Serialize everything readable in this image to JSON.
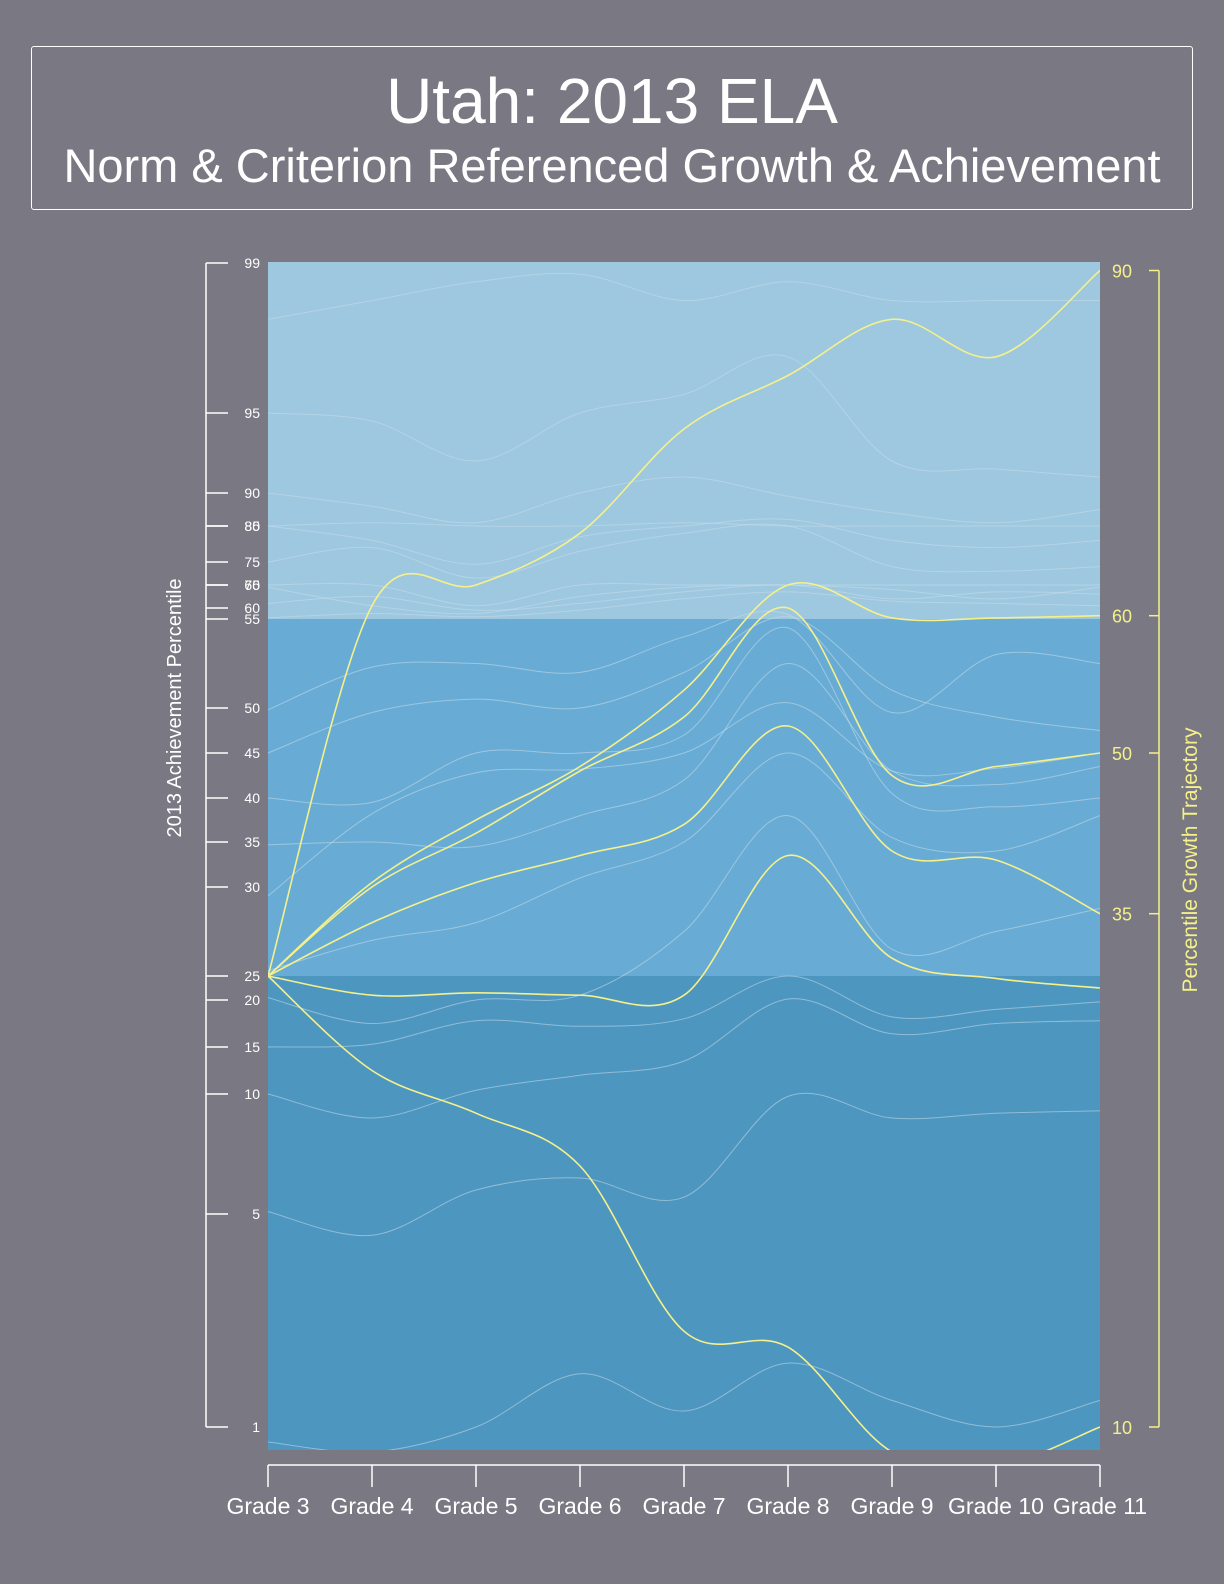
{
  "title": "Utah: 2013 ELA",
  "subtitle": "Norm & Criterion Referenced Growth & Achievement",
  "colors": {
    "background": "#797883",
    "band_top": "#9dc8e0",
    "band_middle": "#68acd5",
    "band_bottom": "#4d96c0",
    "trajectory": "#f5f08a",
    "gridline": "#c9dcea",
    "axis": "#ffffff"
  },
  "chart_data": {
    "type": "line",
    "x": [
      "Grade 3",
      "Grade 4",
      "Grade 5",
      "Grade 6",
      "Grade 7",
      "Grade 8",
      "Grade 9",
      "Grade 10",
      "Grade 11"
    ],
    "y_left": {
      "label": "2013 Achievement Percentile",
      "ticks": [
        "1",
        "5",
        "10",
        "15",
        "20",
        "25",
        "30",
        "35",
        "40",
        "45",
        "50",
        "55",
        "60",
        "65",
        "70",
        "75",
        "80",
        "85",
        "90",
        "95",
        "99"
      ],
      "range": [
        1,
        99
      ]
    },
    "y_right": {
      "label": "Percentile Growth Trajectory",
      "ticks": [
        "10",
        "35",
        "50",
        "60",
        "90"
      ]
    },
    "bands": [
      {
        "from": 0.5,
        "to": 25
      },
      {
        "from": 25,
        "to": 55
      },
      {
        "from": 55,
        "to": 99
      }
    ],
    "percentile_curves": [
      [
        0.7,
        0.5,
        1.0,
        2.0,
        1.3,
        2.2,
        1.5,
        1.0,
        1.5
      ],
      [
        5.1,
        4.6,
        6.0,
        6.5,
        5.7,
        9.9,
        9.0,
        9.2,
        9.3
      ],
      [
        10,
        9,
        10.4,
        12,
        13.5,
        20.2,
        16.4,
        17.5,
        17.8
      ],
      [
        15.0,
        15.3,
        17.8,
        17.2,
        18.0,
        25.0,
        18.2,
        19.0,
        19.8
      ],
      [
        20.5,
        17.5,
        20.0,
        21.0,
        27.5,
        38.0,
        26.5,
        27.5,
        28.8
      ],
      [
        25.3,
        27.0,
        28.0,
        31.0,
        35.0,
        45.0,
        35.5,
        34.0,
        38.0
      ],
      [
        29.5,
        38.2,
        42.8,
        43.2,
        45.0,
        50.3,
        43.0,
        43.3,
        45.0
      ],
      [
        34.7,
        35.0,
        34.5,
        38.0,
        42.0,
        52.5,
        43.0,
        41.5,
        43.5
      ],
      [
        40.0,
        39.5,
        45.0,
        45.0,
        47.0,
        54.5,
        40.5,
        39.0,
        40.0
      ],
      [
        45.0,
        49.5,
        50.5,
        50.0,
        52.0,
        56.0,
        51.0,
        49.0,
        47.5
      ],
      [
        49.8,
        52.3,
        52.5,
        52.0,
        54.0,
        57.0,
        49.5,
        53.0,
        52.5
      ],
      [
        55.5,
        57.5,
        56.0,
        59.0,
        62.0,
        63.5,
        61.5,
        61.0,
        60.5
      ],
      [
        61.0,
        62.5,
        59.0,
        61.0,
        63.5,
        66.0,
        62.0,
        63.5,
        63.0
      ],
      [
        64.5,
        60.5,
        57.5,
        62.5,
        64.5,
        67.5,
        64.0,
        62.0,
        64.5
      ],
      [
        67.5,
        66.5,
        60.5,
        66.0,
        65.0,
        69.5,
        65.0,
        66.0,
        67.0
      ],
      [
        75.0,
        77.0,
        71.5,
        76.5,
        79.0,
        80.0,
        74.0,
        73.0,
        74.0
      ],
      [
        80.0,
        78.0,
        74.5,
        78.5,
        80.0,
        86.0,
        78.0,
        77.0,
        78.0
      ],
      [
        82.0,
        85.5,
        80.0,
        82.0,
        85.5,
        84.5,
        82.5,
        83.0,
        80.0
      ],
      [
        90.0,
        88.0,
        85.5,
        90.0,
        91.0,
        89.5,
        87.0,
        85.5,
        87.5
      ],
      [
        95.0,
        94.5,
        92.0,
        95.0,
        95.5,
        96.5,
        92.0,
        91.5,
        91.0
      ],
      [
        97.5,
        98.0,
        98.5,
        98.7,
        98.0,
        98.5,
        98.0,
        98.0,
        98.0
      ]
    ],
    "growth_trajectories": [
      {
        "target": "90",
        "values": [
          25,
          60.5,
          65.5,
          79,
          94,
          96,
          97.5,
          96.5,
          98.8
        ]
      },
      {
        "target": "60",
        "values": [
          25,
          30.5,
          37.5,
          43.5,
          51,
          66,
          55.5,
          55.5,
          56.5
        ]
      },
      {
        "target": "50",
        "values": [
          25,
          30,
          36,
          43,
          49,
          60,
          42.5,
          43.5,
          45
        ]
      },
      {
        "target": "35",
        "values": [
          25,
          28,
          30.5,
          33.5,
          37,
          48,
          34,
          33,
          28.5
        ]
      },
      {
        "target": "",
        "values": [
          25,
          21.0,
          21.5,
          21.0,
          21.0,
          33.5,
          26.0,
          24.5,
          22.5
        ]
      },
      {
        "target": "10",
        "values": [
          25,
          12.5,
          9.2,
          7.0,
          2.8,
          2.5,
          0.5,
          0.3,
          1.0
        ]
      }
    ]
  }
}
